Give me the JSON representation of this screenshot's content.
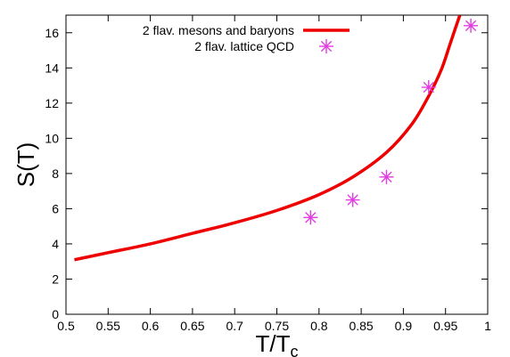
{
  "chart_data": {
    "type": "line",
    "title": "",
    "xlabel": {
      "base": "T/T",
      "sub": "c"
    },
    "ylabel": "S(T)",
    "xlim": [
      0.5,
      1.0
    ],
    "ylim": [
      0,
      17
    ],
    "x_ticks": [
      "0.5",
      "0.55",
      "0.6",
      "0.65",
      "0.7",
      "0.75",
      "0.8",
      "0.85",
      "0.9",
      "0.95",
      "1"
    ],
    "y_ticks": [
      "0",
      "2",
      "4",
      "6",
      "8",
      "10",
      "12",
      "14",
      "16"
    ],
    "grid": false,
    "legend_placement": "top-left",
    "series": [
      {
        "name": "2 flav. mesons and baryons",
        "kind": "line",
        "color": "#ee0000",
        "x": [
          0.51,
          0.55,
          0.6,
          0.65,
          0.7,
          0.75,
          0.8,
          0.84,
          0.88,
          0.91,
          0.93,
          0.945,
          0.955,
          0.962,
          0.967
        ],
        "y": [
          3.1,
          3.5,
          4.0,
          4.6,
          5.2,
          5.9,
          6.8,
          7.8,
          9.2,
          10.8,
          12.4,
          13.9,
          15.3,
          16.3,
          17.0
        ]
      },
      {
        "name": "2 flav. lattice QCD",
        "kind": "scatter",
        "marker": "star",
        "color": "#e03ce0",
        "x": [
          0.79,
          0.84,
          0.88,
          0.93,
          0.98
        ],
        "y": [
          5.5,
          6.5,
          7.8,
          12.9,
          16.4
        ]
      }
    ]
  }
}
